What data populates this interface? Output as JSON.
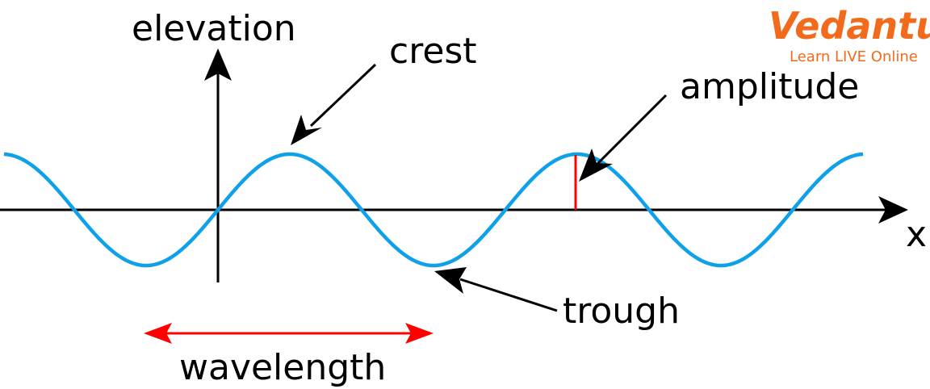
{
  "labels": {
    "elevation": "elevation",
    "crest": "crest",
    "amplitude": "amplitude",
    "x_axis": "x",
    "trough": "trough",
    "wavelength": "wavelength"
  },
  "logo": {
    "name": "Vedantu",
    "tagline": "Learn LIVE Online",
    "color": "#f26a1b"
  },
  "colors": {
    "wave": "#0fa0ea",
    "marker": "#ff0000",
    "axis": "#000000"
  }
}
